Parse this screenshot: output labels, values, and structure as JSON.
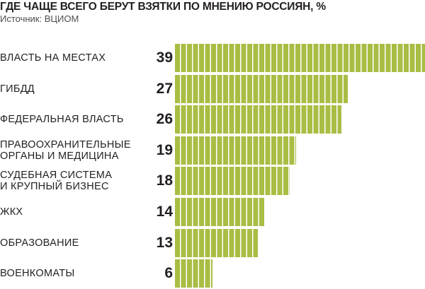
{
  "header": {
    "title": "ГДЕ ЧАЩЕ ВСЕГО БЕРУТ ВЗЯТКИ ПО МНЕНИЮ РОССИЯН, %",
    "source": "Источник: ВЦИОМ"
  },
  "colors": {
    "bar": "#a8bd44",
    "stripe": "#ffffff",
    "text": "#231f20"
  },
  "chart_data": {
    "type": "bar",
    "orientation": "horizontal",
    "title": "ГДЕ ЧАЩЕ ВСЕГО БЕРУТ ВЗЯТКИ ПО МНЕНИЮ РОССИЯН, %",
    "subtitle": "Источник: ВЦИОМ",
    "xlabel": "",
    "ylabel": "",
    "xlim": [
      0,
      39
    ],
    "grid": false,
    "legend": "none",
    "categories": [
      "ВЛАСТЬ НА МЕСТАХ",
      "ГИБДД",
      "ФЕДЕРАЛЬНАЯ ВЛАСТЬ",
      "ПРАВООХРАНИТЕЛЬНЫЕ\nОРГАНЫ И МЕДИЦИНА",
      "СУДЕБНАЯ СИСТЕМА\nИ КРУПНЫЙ БИЗНЕС",
      "ЖКХ",
      "ОБРАЗОВАНИЕ",
      "ВОЕНКОМАТЫ"
    ],
    "values": [
      39,
      27,
      26,
      19,
      18,
      14,
      13,
      6
    ]
  }
}
